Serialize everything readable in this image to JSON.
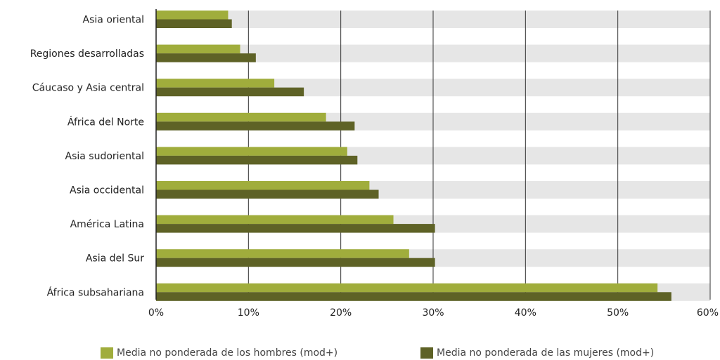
{
  "chart_data": {
    "type": "bar",
    "orientation": "horizontal",
    "title": "",
    "xlabel": "",
    "ylabel": "",
    "categories": [
      "Asia oriental",
      "Regiones desarrolladas",
      "Cáucaso y Asia central",
      "África del Norte",
      "Asia sudoriental",
      "Asia occidental",
      "América Latina",
      "Asia del Sur",
      "África subsahariana"
    ],
    "series": [
      {
        "name": "Media no ponderada de los hombres (mod+)",
        "color": "#a0ad3c",
        "values": [
          7.8,
          9.1,
          12.8,
          18.4,
          20.7,
          23.1,
          25.7,
          27.4,
          54.3
        ]
      },
      {
        "name": "Media no ponderada de las mujeres (mod+)",
        "color": "#5e6226",
        "values": [
          8.2,
          10.8,
          16.0,
          21.5,
          21.8,
          24.1,
          30.2,
          30.2,
          55.8
        ]
      }
    ],
    "xlim": [
      0,
      60
    ],
    "xticks": [
      "0%",
      "10%",
      "20%",
      "30%",
      "40%",
      "50%",
      "60%"
    ],
    "grid": true,
    "legend_position": "bottom"
  }
}
